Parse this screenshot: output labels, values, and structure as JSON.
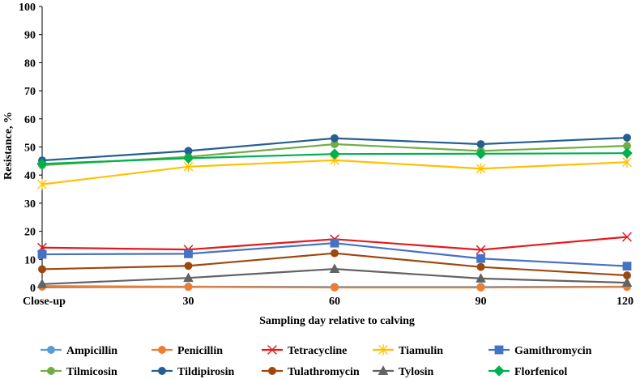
{
  "chart_data": {
    "type": "line",
    "title": "",
    "xlabel": "Sampling day relative to calving",
    "ylabel": "Resistance, %",
    "ylim": [
      0,
      100
    ],
    "yticks": [
      "0",
      "10",
      "20",
      "30",
      "40",
      "50",
      "60",
      "70",
      "80",
      "90",
      "100"
    ],
    "categories": [
      "Close-up",
      "30",
      "60",
      "90",
      "120"
    ],
    "grid": false,
    "legend_position": "bottom",
    "series": [
      {
        "name": "Ampicillin",
        "color": "#5B9BD5",
        "marker": "circle",
        "values": [
          0.5,
          0.3,
          0.2,
          0.2,
          0.3
        ]
      },
      {
        "name": "Penicillin",
        "color": "#ED7D31",
        "marker": "circle",
        "values": [
          0.3,
          0.2,
          0.0,
          0.0,
          0.2
        ]
      },
      {
        "name": "Tetracycline",
        "color": "#E31A1C",
        "marker": "x",
        "values": [
          14.2,
          13.5,
          17.2,
          13.4,
          18.0
        ]
      },
      {
        "name": "Tiamulin",
        "color": "#FFC000",
        "marker": "star",
        "values": [
          36.7,
          43.0,
          45.3,
          42.3,
          44.6
        ]
      },
      {
        "name": "Gamithromycin",
        "color": "#4472C4",
        "marker": "square",
        "values": [
          11.8,
          12.0,
          15.8,
          10.3,
          7.6
        ]
      },
      {
        "name": "Tilmicosin",
        "color": "#70AD47",
        "marker": "circle",
        "values": [
          43.5,
          46.5,
          51.0,
          48.6,
          50.4
        ]
      },
      {
        "name": "Tildipirosin",
        "color": "#255E91",
        "marker": "circle",
        "values": [
          45.2,
          48.6,
          53.1,
          51.0,
          53.3
        ]
      },
      {
        "name": "Tulathromycin",
        "color": "#9E480E",
        "marker": "circle",
        "values": [
          6.5,
          7.7,
          12.2,
          7.3,
          4.3
        ]
      },
      {
        "name": "Tylosin",
        "color": "#636363",
        "marker": "triangle",
        "values": [
          1.2,
          3.4,
          6.6,
          3.2,
          1.7
        ]
      },
      {
        "name": "Florfenicol",
        "color": "#00B050",
        "marker": "diamond",
        "values": [
          44.0,
          46.0,
          47.5,
          47.6,
          47.8
        ]
      }
    ]
  }
}
